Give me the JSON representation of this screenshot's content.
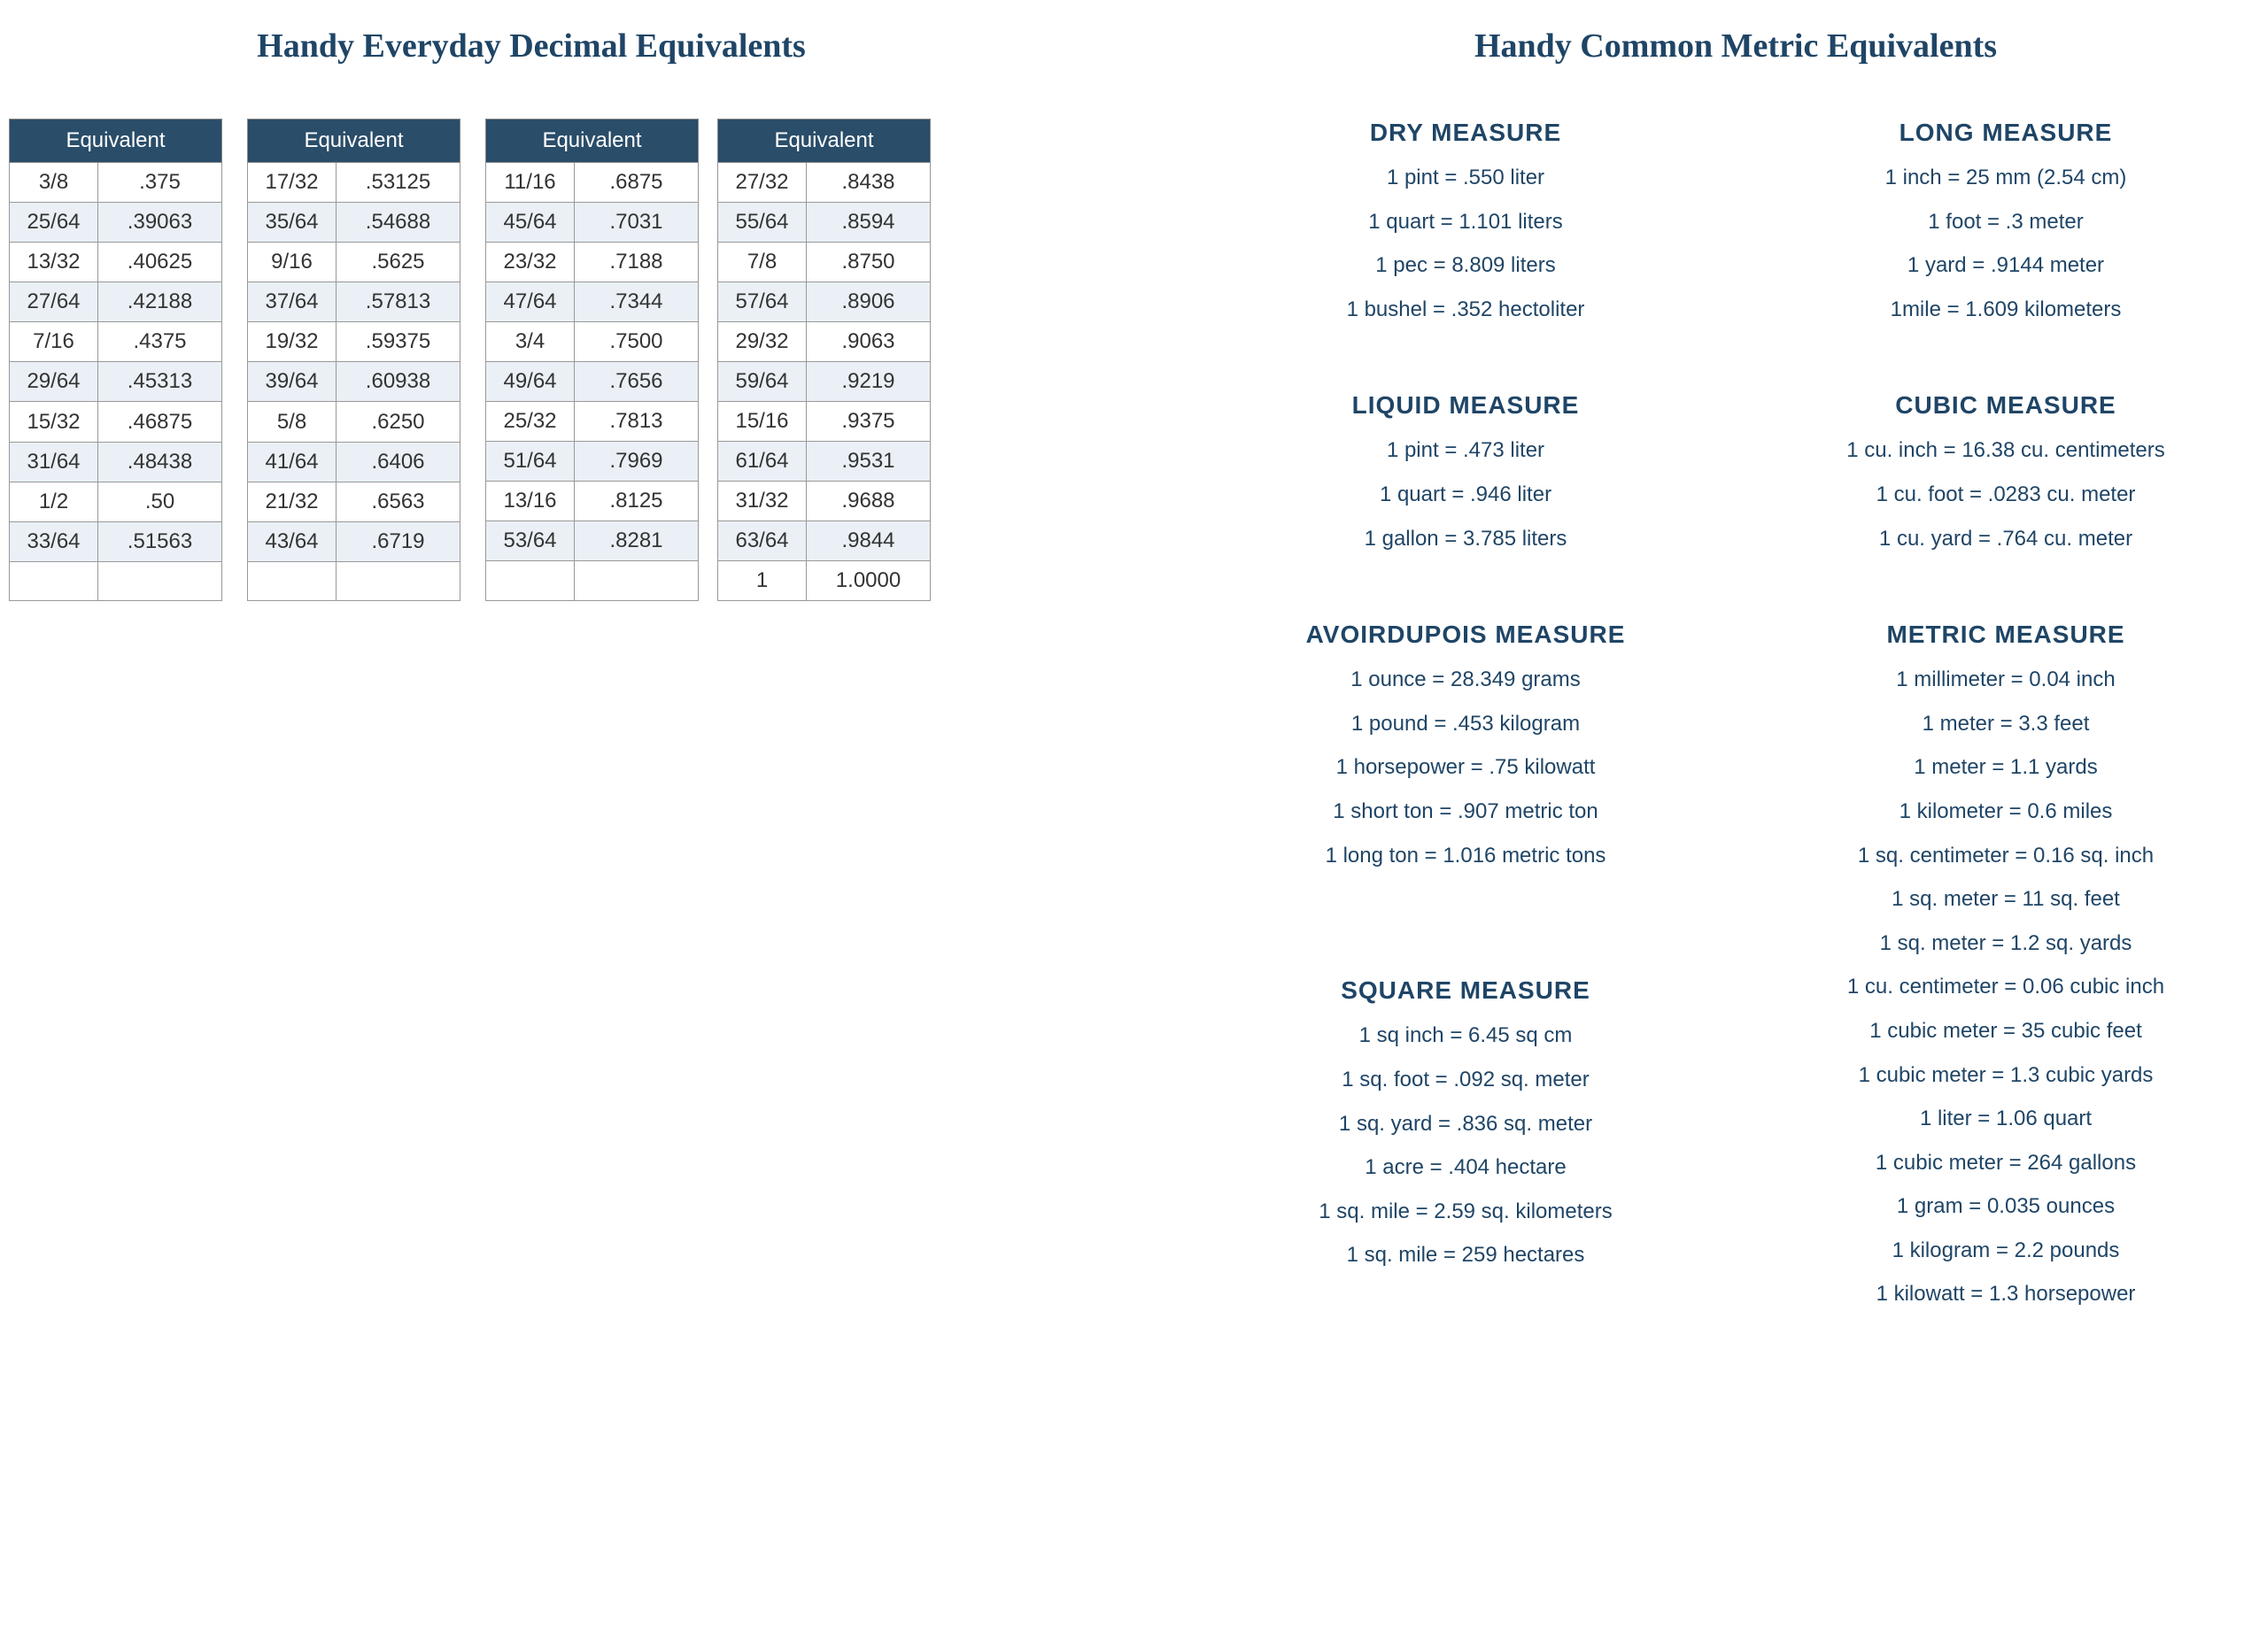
{
  "colors": {
    "heading": "#1f4566",
    "tableHeaderBg": "#2a4d69",
    "tableHeaderText": "#ffffff",
    "rowAlt": "#eaf0f5",
    "border": "#999999",
    "bodyText": "#1f4566"
  },
  "left": {
    "title": "Handy Everyday Decimal Equivalents",
    "tables": [
      {
        "headers": [
          "Equivalent"
        ],
        "cols": 1,
        "rows": [
          [
            "3/8",
            ".375"
          ],
          [
            "25/64",
            ".39063"
          ],
          [
            "13/32",
            ".40625"
          ],
          [
            "27/64",
            ".42188"
          ],
          [
            "7/16",
            ".4375"
          ],
          [
            "29/64",
            ".45313"
          ],
          [
            "15/32",
            ".46875"
          ],
          [
            "31/64",
            ".48438"
          ],
          [
            "1/2",
            ".50"
          ],
          [
            "33/64",
            ".51563"
          ],
          [
            "",
            ""
          ]
        ]
      },
      {
        "headers": [
          "Equivalent"
        ],
        "cols": 1,
        "rows": [
          [
            "17/32",
            ".53125"
          ],
          [
            "35/64",
            ".54688"
          ],
          [
            "9/16",
            ".5625"
          ],
          [
            "37/64",
            ".57813"
          ],
          [
            "19/32",
            ".59375"
          ],
          [
            "39/64",
            ".60938"
          ],
          [
            "5/8",
            ".6250"
          ],
          [
            "41/64",
            ".6406"
          ],
          [
            "21/32",
            ".6563"
          ],
          [
            "43/64",
            ".6719"
          ],
          [
            "",
            ""
          ]
        ]
      },
      {
        "headers": [
          "Equivalent",
          "Equivalent"
        ],
        "cols": 2,
        "rows": [
          [
            "11/16",
            ".6875",
            "27/32",
            ".8438"
          ],
          [
            "45/64",
            ".7031",
            "55/64",
            ".8594"
          ],
          [
            "23/32",
            ".7188",
            "7/8",
            ".8750"
          ],
          [
            "47/64",
            ".7344",
            "57/64",
            ".8906"
          ],
          [
            "3/4",
            ".7500",
            "29/32",
            ".9063"
          ],
          [
            "49/64",
            ".7656",
            "59/64",
            ".9219"
          ],
          [
            "25/32",
            ".7813",
            "15/16",
            ".9375"
          ],
          [
            "51/64",
            ".7969",
            "61/64",
            ".9531"
          ],
          [
            "13/16",
            ".8125",
            "31/32",
            ".9688"
          ],
          [
            "53/64",
            ".8281",
            "63/64",
            ".9844"
          ],
          [
            "",
            "",
            "1",
            "1.0000"
          ]
        ]
      }
    ]
  },
  "right": {
    "title": "Handy Common Metric Equivalents",
    "sections": [
      {
        "title": "DRY MEASURE",
        "items": [
          "1 pint = .550 liter",
          "1 quart = 1.101 liters",
          "1 pec = 8.809 liters",
          "1 bushel = .352 hectoliter"
        ]
      },
      {
        "title": "LONG MEASURE",
        "items": [
          "1 inch = 25 mm (2.54 cm)",
          "1 foot = .3 meter",
          "1 yard = .9144 meter",
          "1mile = 1.609 kilometers"
        ]
      },
      {
        "title": "LIQUID MEASURE",
        "items": [
          "1 pint = .473 liter",
          "1 quart = .946 liter",
          "1 gallon = 3.785 liters"
        ]
      },
      {
        "title": "CUBIC MEASURE",
        "items": [
          "1 cu. inch = 16.38 cu. centimeters",
          "1 cu. foot = .0283 cu. meter",
          "1 cu. yard = .764 cu. meter"
        ]
      },
      {
        "title": "AVOIRDUPOIS MEASURE",
        "items": [
          "1 ounce = 28.349 grams",
          "1 pound = .453 kilogram",
          "1 horsepower = .75 kilowatt",
          "1 short ton = .907 metric ton",
          "1 long ton = 1.016 metric tons"
        ]
      },
      {
        "title": "METRIC MEASURE",
        "items": [
          "1 millimeter = 0.04 inch",
          "1 meter = 3.3 feet",
          "1 meter = 1.1 yards",
          "1 kilometer = 0.6 miles",
          "1 sq. centimeter = 0.16 sq. inch",
          "1 sq. meter = 11 sq. feet",
          "1 sq. meter = 1.2 sq. yards",
          "1 cu. centimeter = 0.06 cubic inch",
          "1 cubic meter = 35 cubic feet",
          "1 cubic meter = 1.3 cubic yards",
          "1 liter = 1.06 quart",
          "1 cubic meter = 264 gallons",
          "1 gram = 0.035 ounces",
          "1 kilogram = 2.2 pounds",
          "1 kilowatt = 1.3 horsepower"
        ]
      },
      {
        "title": "SQUARE MEASURE",
        "items": [
          "1 sq inch = 6.45 sq cm",
          "1 sq. foot = .092 sq. meter",
          "1 sq. yard = .836 sq. meter",
          "1 acre = .404 hectare",
          "1 sq. mile = 2.59 sq. kilometers",
          "1 sq. mile = 259 hectares"
        ]
      }
    ]
  }
}
